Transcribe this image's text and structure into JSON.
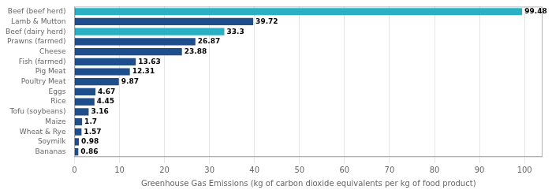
{
  "chart_data": {
    "type": "bar",
    "orientation": "horizontal",
    "categories": [
      "Beef (beef herd)",
      "Lamb & Mutton",
      "Beef (dairy herd)",
      "Prawns (farmed)",
      "Cheese",
      "Fish (farmed)",
      "Pig Meat",
      "Poultry Meat",
      "Eggs",
      "Rice",
      "Tofu (soybeans)",
      "Maize",
      "Wheat & Rye",
      "Soymilk",
      "Bananas"
    ],
    "values": [
      99.48,
      39.72,
      33.3,
      26.87,
      23.88,
      13.63,
      12.31,
      9.87,
      4.67,
      4.45,
      3.16,
      1.7,
      1.57,
      0.98,
      0.86
    ],
    "colors": [
      "#2ab0c5",
      "#1f4e8c",
      "#2ab0c5",
      "#1f4e8c",
      "#1f4e8c",
      "#1f4e8c",
      "#1f4e8c",
      "#1f4e8c",
      "#1f4e8c",
      "#1f4e8c",
      "#1f4e8c",
      "#1f4e8c",
      "#1f4e8c",
      "#1f4e8c",
      "#1f4e8c"
    ],
    "xlabel": "Greenhouse Gas Emissions (kg of carbon dioxide equivalents per kg of food product)",
    "xlim": [
      0,
      104
    ],
    "xticks": [
      0,
      10,
      20,
      30,
      40,
      50,
      60,
      70,
      80,
      90,
      100
    ],
    "grid": true,
    "data_labels": true
  }
}
